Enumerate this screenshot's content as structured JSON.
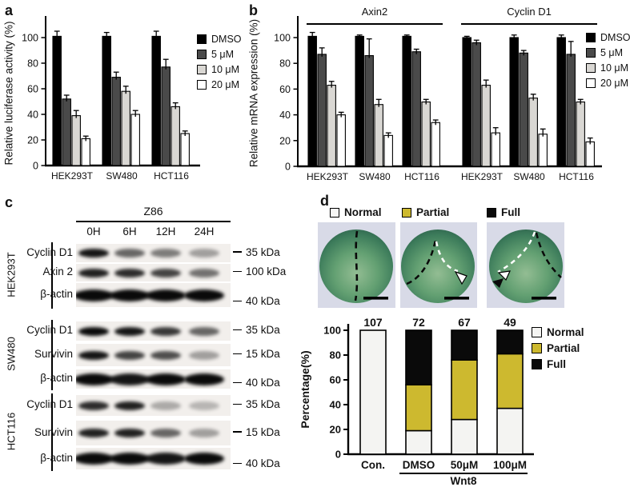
{
  "panels": {
    "a": {
      "letter": "a",
      "ylabel": "Relative luciferase activity (%)"
    },
    "b": {
      "letter": "b",
      "ylabel": "Relative mRNA expression (%)"
    },
    "c": {
      "letter": "c"
    },
    "d": {
      "letter": "d",
      "ylabel": "Percentage(%)",
      "phenotypes": [
        {
          "name": "Normal",
          "color": "#f7f7f5"
        },
        {
          "name": "Partial",
          "color": "#cdb92f"
        },
        {
          "name": "Full",
          "color": "#0a0a0a"
        }
      ]
    }
  },
  "chart_data": [
    {
      "id": "a",
      "type": "bar",
      "ylabel": "Relative luciferase activity (%)",
      "ylim": [
        0,
        115
      ],
      "yticks": [
        0,
        20,
        40,
        60,
        80,
        100
      ],
      "categories": [
        "HEK293T",
        "SW480",
        "HCT116"
      ],
      "series": [
        {
          "name": "DMSO",
          "color": "#000000",
          "values": [
            101,
            101,
            101
          ],
          "errors": [
            4,
            3,
            4
          ]
        },
        {
          "name": "5 μM",
          "color": "#4a4a4a",
          "values": [
            52,
            69,
            77
          ],
          "errors": [
            3,
            4,
            6
          ]
        },
        {
          "name": "10 μM",
          "color": "#d9d7d3",
          "values": [
            39,
            58,
            46
          ],
          "errors": [
            4,
            4,
            3
          ]
        },
        {
          "name": "20 μM",
          "color": "#ffffff",
          "values": [
            21,
            40,
            25
          ],
          "errors": [
            2,
            3,
            2
          ]
        }
      ],
      "legend_position": "right"
    },
    {
      "id": "b",
      "type": "bar",
      "ylabel": "Relative mRNA expression (%)",
      "ylim": [
        0,
        115
      ],
      "yticks": [
        0,
        20,
        40,
        60,
        80,
        100
      ],
      "group_headers": [
        "Axin2",
        "Cyclin D1"
      ],
      "categories": [
        "HEK293T",
        "SW480",
        "HCT116",
        "HEK293T",
        "SW480",
        "HCT116"
      ],
      "series": [
        {
          "name": "DMSO",
          "color": "#000000",
          "values": [
            101,
            101,
            101,
            100,
            100,
            100
          ],
          "errors": [
            3,
            1,
            1,
            1,
            2,
            2
          ]
        },
        {
          "name": "5 μM",
          "color": "#4a4a4a",
          "values": [
            87,
            86,
            89,
            96,
            88,
            87
          ],
          "errors": [
            5,
            13,
            2,
            2,
            2,
            10
          ]
        },
        {
          "name": "10 μM",
          "color": "#d9d7d3",
          "values": [
            63,
            48,
            50,
            63,
            53,
            50
          ],
          "errors": [
            3,
            4,
            2,
            4,
            3,
            2
          ]
        },
        {
          "name": "20 μM",
          "color": "#ffffff",
          "values": [
            40,
            24,
            34,
            26,
            25,
            19
          ],
          "errors": [
            2,
            2,
            2,
            4,
            4,
            3
          ]
        }
      ],
      "legend_position": "right"
    },
    {
      "id": "d",
      "type": "stacked_bar",
      "ylabel": "Percentage(%)",
      "ylim": [
        0,
        100
      ],
      "yticks": [
        0,
        20,
        40,
        60,
        80,
        100
      ],
      "categories": [
        "Con.",
        "DMSO",
        "50μM",
        "100μM"
      ],
      "counts": [
        107,
        72,
        67,
        49
      ],
      "x_annotation": "Wnt8",
      "series": [
        {
          "name": "Normal",
          "color": "#f4f4f2",
          "values": [
            100,
            19,
            28,
            37
          ]
        },
        {
          "name": "Partial",
          "color": "#cdb92f",
          "values": [
            0,
            37,
            48,
            44
          ]
        },
        {
          "name": "Full",
          "color": "#0a0a0a",
          "values": [
            0,
            44,
            24,
            19
          ]
        }
      ]
    }
  ],
  "panel_c": {
    "treatment": "Z86",
    "lanes": [
      "0H",
      "6H",
      "12H",
      "24H"
    ],
    "groups": [
      {
        "cell_line": "HEK293T",
        "rows": [
          {
            "protein": "Cyclin D1",
            "marker": "35 kDa",
            "band_intensity": [
              0.95,
              0.6,
              0.5,
              0.35
            ]
          },
          {
            "protein": "Axin 2",
            "marker": "100 kDa",
            "band_intensity": [
              0.9,
              0.85,
              0.75,
              0.55
            ]
          },
          {
            "protein": "β-actin",
            "marker": "40 kDa",
            "band_intensity": [
              1,
              1,
              1,
              1
            ]
          }
        ]
      },
      {
        "cell_line": "SW480",
        "rows": [
          {
            "protein": "Cyclin D1",
            "marker": "35 kDa",
            "band_intensity": [
              1,
              0.95,
              0.8,
              0.6
            ]
          },
          {
            "protein": "Survivin",
            "marker": "15 kDa",
            "band_intensity": [
              0.95,
              0.75,
              0.7,
              0.35
            ]
          },
          {
            "protein": "β-actin",
            "marker": "40 kDa",
            "band_intensity": [
              1,
              0.95,
              1,
              1
            ]
          }
        ]
      },
      {
        "cell_line": "HCT116",
        "rows": [
          {
            "protein": "Cyclin D1",
            "marker": "35 kDa",
            "band_intensity": [
              0.85,
              0.9,
              0.3,
              0.25
            ]
          },
          {
            "protein": "Survivin",
            "marker": "15 kDa",
            "band_intensity": [
              0.9,
              0.9,
              0.6,
              0.35
            ]
          },
          {
            "protein": "β-actin",
            "marker": "40 kDa",
            "band_intensity": [
              1,
              1,
              0.95,
              1
            ]
          }
        ]
      }
    ]
  }
}
